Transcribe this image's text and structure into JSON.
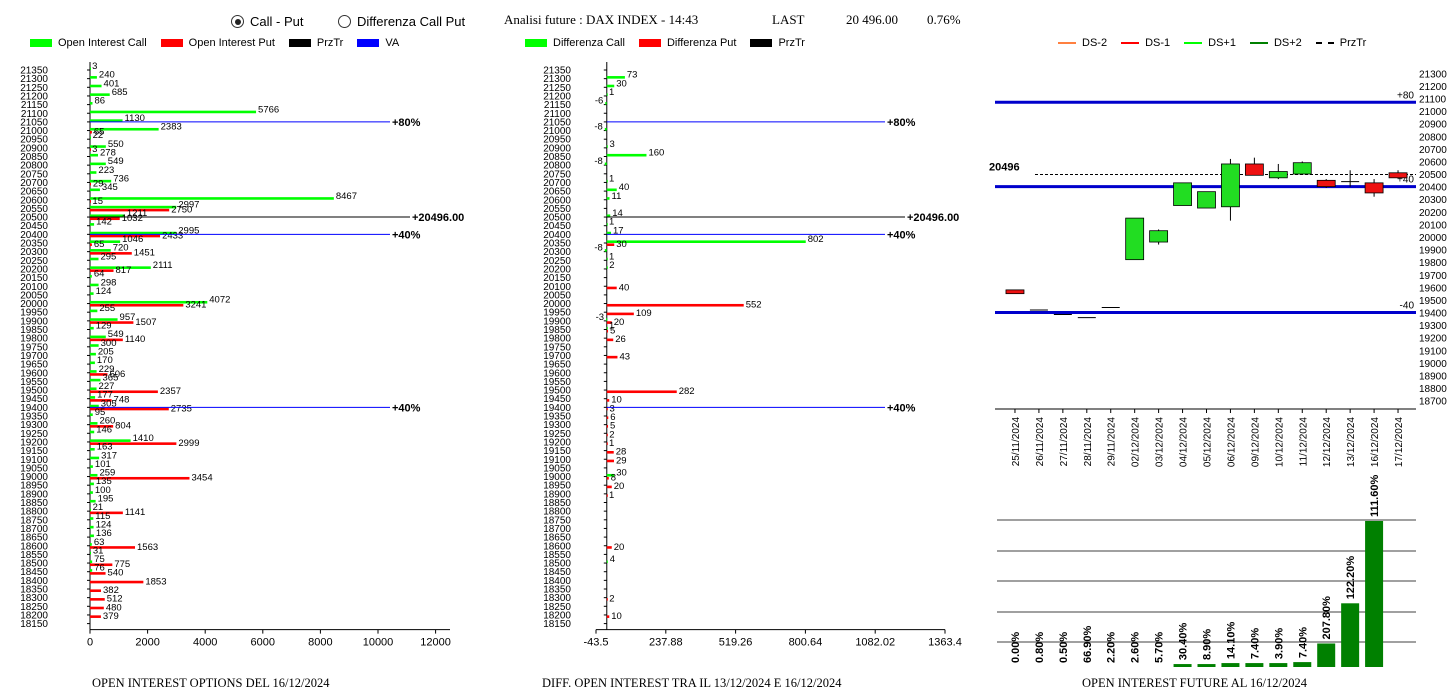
{
  "header": {
    "radio_call_put": "Call - Put",
    "radio_diff": "Differenza Call Put",
    "title": "Analisi future : DAX INDEX - 14:43",
    "last_label": "LAST",
    "last_value": "20 496.00",
    "change": "0.76%"
  },
  "legend1": {
    "oi_call": "Open Interest Call",
    "oi_put": "Open Interest Put",
    "prztr": "PrzTr",
    "va": "VA"
  },
  "legend2": {
    "diff_call": "Differenza Call",
    "diff_put": "Differenza Put",
    "prztr": "PrzTr"
  },
  "legend3": {
    "ds_m2": "DS-2",
    "ds_m1": "DS-1",
    "ds_p1": "DS+1",
    "ds_p2": "DS+2",
    "prztr": "PrzTr"
  },
  "captions": {
    "left": "OPEN INTEREST OPTIONS DEL 16/12/2024",
    "mid": "DIFF. OPEN INTEREST TRA IL 13/12/2024 E 16/12/2024",
    "right": "OPEN INTEREST FUTURE AL 16/12/2024"
  },
  "colors": {
    "call": "#00ff00",
    "put": "#ff0000",
    "va": "#0000ff",
    "future": "#008000"
  },
  "chart_data": [
    {
      "type": "bar",
      "orientation": "horizontal",
      "caption": "OPEN INTEREST OPTIONS DEL 16/12/2024",
      "strikes": [
        21350,
        21300,
        21250,
        21200,
        21150,
        21100,
        21050,
        21000,
        20950,
        20900,
        20850,
        20800,
        20750,
        20700,
        20650,
        20600,
        20550,
        20500,
        20450,
        20400,
        20350,
        20300,
        20250,
        20200,
        20150,
        20100,
        20050,
        20000,
        19950,
        19900,
        19850,
        19800,
        19750,
        19700,
        19650,
        19600,
        19550,
        19500,
        19450,
        19400,
        19350,
        19300,
        19250,
        19200,
        19150,
        19100,
        19050,
        19000,
        18950,
        18900,
        18850,
        18800,
        18750,
        18700,
        18650,
        18600,
        18550,
        18500,
        18450,
        18400,
        18350,
        18300,
        18250,
        18200,
        18150
      ],
      "series": [
        {
          "name": "Open Interest Call",
          "color": "#00ff00",
          "values": [
            3,
            240,
            401,
            685,
            86,
            5766,
            1130,
            2383,
            22,
            550,
            278,
            549,
            223,
            736,
            345,
            8467,
            2997,
            1211,
            142,
            2995,
            1046,
            720,
            295,
            2111,
            64,
            298,
            124,
            4072,
            255,
            957,
            129,
            549,
            300,
            205,
            170,
            229,
            365,
            227,
            177,
            305,
            95,
            260,
            146,
            1410,
            163,
            317,
            101,
            259,
            135,
            100,
            195,
            21,
            115,
            124,
            136,
            63,
            31,
            75,
            76,
            0,
            0,
            0,
            0,
            0,
            0
          ]
        },
        {
          "name": "Open Interest Put",
          "color": "#ff0000",
          "values": [
            0,
            0,
            0,
            0,
            0,
            0,
            0,
            65,
            0,
            3,
            0,
            0,
            0,
            29,
            0,
            15,
            2750,
            1032,
            0,
            2433,
            65,
            1451,
            0,
            817,
            0,
            0,
            0,
            3241,
            0,
            1507,
            0,
            1140,
            0,
            0,
            0,
            606,
            0,
            2357,
            748,
            2735,
            0,
            804,
            0,
            2999,
            0,
            0,
            0,
            3454,
            0,
            0,
            0,
            1141,
            0,
            0,
            0,
            1563,
            0,
            775,
            540,
            1853,
            382,
            512,
            480,
            379,
            0
          ]
        }
      ],
      "markers": [
        {
          "strike": 21050,
          "label": "80%",
          "value": 9800
        },
        {
          "strike": 20500,
          "label": "20496.00",
          "value": 10700
        },
        {
          "strike": 20400,
          "label": "40%",
          "value": 9800
        },
        {
          "strike": 19400,
          "label": "40%",
          "value": 9800
        }
      ],
      "xticks": [
        0,
        2000,
        4000,
        6000,
        8000,
        10000,
        12000
      ],
      "xlim": [
        0,
        12500
      ]
    },
    {
      "type": "bar",
      "orientation": "horizontal",
      "caption": "DIFF. OPEN INTEREST TRA IL 13/12/2024 E 16/12/2024",
      "strikes": [
        21350,
        21300,
        21250,
        21200,
        21150,
        21100,
        21050,
        21000,
        20950,
        20900,
        20850,
        20800,
        20750,
        20700,
        20650,
        20600,
        20550,
        20500,
        20450,
        20400,
        20350,
        20300,
        20250,
        20200,
        20150,
        20100,
        20050,
        20000,
        19950,
        19900,
        19850,
        19800,
        19750,
        19700,
        19650,
        19600,
        19550,
        19500,
        19450,
        19400,
        19350,
        19300,
        19250,
        19200,
        19150,
        19100,
        19050,
        19000,
        18950,
        18900,
        18850,
        18800,
        18750,
        18700,
        18650,
        18600,
        18550,
        18500,
        18450,
        18400,
        18350,
        18300,
        18250,
        18200,
        18150
      ],
      "series": [
        {
          "name": "Differenza Call",
          "color": "#00ff00",
          "values": [
            0,
            73,
            30,
            1,
            -6,
            0,
            0,
            -8,
            0,
            3,
            160,
            -8,
            0,
            1,
            40,
            11,
            0,
            14,
            1,
            17,
            802,
            -8,
            1,
            2,
            0,
            0,
            0,
            0,
            0,
            -3,
            1,
            0,
            0,
            0,
            0,
            0,
            0,
            0,
            0,
            0,
            0,
            0,
            0,
            0,
            0,
            0,
            0,
            30,
            0,
            0,
            0,
            0,
            0,
            0,
            0,
            0,
            0,
            4,
            0,
            0,
            0,
            0,
            0,
            0,
            0
          ]
        },
        {
          "name": "Differenza Put",
          "color": "#ff0000",
          "values": [
            0,
            0,
            0,
            0,
            0,
            0,
            0,
            0,
            0,
            0,
            0,
            0,
            0,
            0,
            0,
            0,
            0,
            0,
            0,
            0,
            30,
            0,
            0,
            0,
            0,
            40,
            0,
            552,
            109,
            20,
            5,
            26,
            0,
            43,
            0,
            0,
            0,
            282,
            10,
            3,
            6,
            5,
            2,
            1,
            28,
            29,
            0,
            8,
            20,
            1,
            0,
            0,
            0,
            0,
            0,
            20,
            0,
            0,
            0,
            0,
            0,
            2,
            0,
            10,
            0
          ]
        }
      ],
      "markers": [
        {
          "strike": 21050,
          "label": "80%"
        },
        {
          "strike": 20500,
          "label": "20496.00"
        },
        {
          "strike": 20400,
          "label": "40%"
        },
        {
          "strike": 19400,
          "label": "40%"
        }
      ],
      "xticks": [
        -43.5,
        237.88,
        519.26,
        800.64,
        1082.02,
        1363.4
      ],
      "xlim": [
        -43.5,
        1363.4
      ]
    },
    {
      "type": "candlestick",
      "caption": "OPEN INTEREST FUTURE AL 16/12/2024",
      "dates": [
        "25/11/2024",
        "26/11/2024",
        "27/11/2024",
        "28/11/2024",
        "29/11/2024",
        "02/12/2024",
        "03/12/2024",
        "04/12/2024",
        "05/12/2024",
        "06/12/2024",
        "09/12/2024",
        "10/12/2024",
        "11/12/2024",
        "12/12/2024",
        "13/12/2024",
        "16/12/2024",
        "17/12/2024"
      ],
      "candles": [
        {
          "open": 19580,
          "close": 19550,
          "high": 19580,
          "low": 19550
        },
        {
          "open": 19420,
          "close": 19420,
          "high": 19420,
          "low": 19420
        },
        {
          "open": 19385,
          "close": 19385,
          "high": 19385,
          "low": 19385
        },
        {
          "open": 19360,
          "close": 19360,
          "high": 19360,
          "low": 19360
        },
        {
          "open": 19440,
          "close": 19440,
          "high": 19440,
          "low": 19440
        },
        {
          "open": 19820,
          "close": 20150,
          "high": 20150,
          "low": 19820
        },
        {
          "open": 19960,
          "close": 20050,
          "high": 20060,
          "low": 19940
        },
        {
          "open": 20250,
          "close": 20430,
          "high": 20430,
          "low": 20250
        },
        {
          "open": 20230,
          "close": 20360,
          "high": 20360,
          "low": 20230
        },
        {
          "open": 20240,
          "close": 20580,
          "high": 20620,
          "low": 20130
        },
        {
          "open": 20580,
          "close": 20490,
          "high": 20630,
          "low": 20490
        },
        {
          "open": 20470,
          "close": 20520,
          "high": 20580,
          "low": 20460
        },
        {
          "open": 20500,
          "close": 20590,
          "high": 20600,
          "low": 20500
        },
        {
          "open": 20450,
          "close": 20400,
          "high": 20460,
          "low": 20390
        },
        {
          "open": 20440,
          "close": 20440,
          "high": 20530,
          "low": 20400
        },
        {
          "open": 20430,
          "close": 20350,
          "high": 20460,
          "low": 20320
        },
        {
          "open": 20510,
          "close": 20470,
          "high": 20530,
          "low": 20470
        }
      ],
      "hlines": [
        {
          "value": 21070,
          "label": "+80"
        },
        {
          "value": 20400,
          "label": "+40"
        },
        {
          "value": 19400,
          "label": "-40"
        }
      ],
      "last": {
        "value": 20496,
        "label": "20496"
      },
      "yticks": [
        21300,
        21200,
        21100,
        21000,
        20900,
        20800,
        20700,
        20600,
        20500,
        20400,
        20300,
        20200,
        20100,
        20000,
        19900,
        19800,
        19700,
        19600,
        19500,
        19400,
        19300,
        19200,
        19100,
        19000,
        18900,
        18800,
        18700
      ],
      "ylim": [
        18650,
        21350
      ]
    },
    {
      "type": "bar",
      "caption": "OPEN INTEREST FUTURE AL 16/12/2024",
      "categories": [
        "25/11/2024",
        "26/11/2024",
        "27/11/2024",
        "28/11/2024",
        "29/11/2024",
        "02/12/2024",
        "03/12/2024",
        "04/12/2024",
        "05/12/2024",
        "06/12/2024",
        "09/12/2024",
        "10/12/2024",
        "11/12/2024",
        "12/12/2024",
        "13/12/2024",
        "16/12/2024",
        "17/12/2024"
      ],
      "labels": [
        "0.00%",
        "0.80%",
        "0.50%",
        "66.90%",
        "2.20%",
        "2.60%",
        "5.70%",
        "30.40%",
        "8.90%",
        "14.10%",
        "7.40%",
        "3.90%",
        "7.40%",
        "207.80%",
        "122.20%",
        "111.60%",
        ""
      ],
      "values": [
        0,
        0,
        0,
        0,
        0,
        0,
        0,
        3,
        3,
        4,
        4,
        4,
        5,
        24,
        65,
        149,
        0
      ]
    }
  ]
}
